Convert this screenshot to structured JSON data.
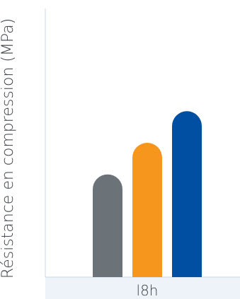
{
  "chart_data": {
    "type": "bar",
    "categories": [
      "l8h"
    ],
    "series": [
      {
        "values": [
          13
        ],
        "color": "#6b7379"
      },
      {
        "values": [
          17
        ],
        "color": "#f7961d"
      },
      {
        "values": [
          21
        ],
        "color": "#004fa3"
      }
    ],
    "xlabel": "l8h",
    "ylabel": "Résistance en compression (MPa)",
    "ylim": [
      0,
      34
    ],
    "grid": false,
    "colors": {
      "axis": "#c9d7ea",
      "band": "#eef3fa"
    }
  }
}
